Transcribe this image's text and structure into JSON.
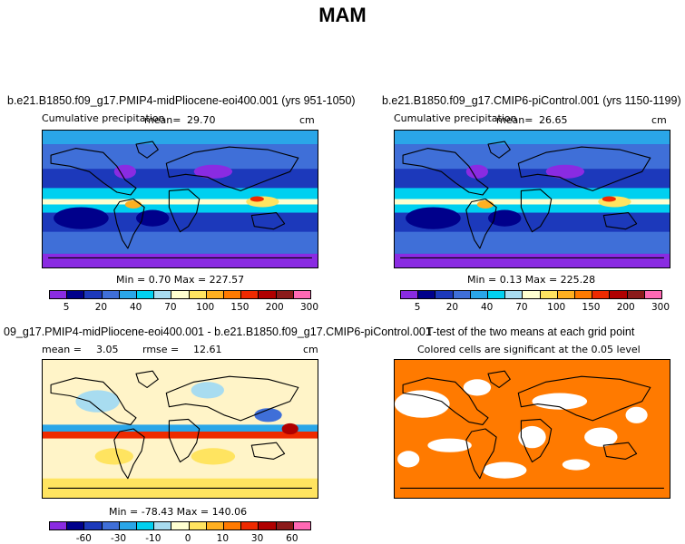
{
  "title": "MAM",
  "panels": [
    {
      "id": "pliocene",
      "title": "b.e21.B1850.f09_g17.PMIP4-midPliocene-eoi400.001 (yrs 951-1050)",
      "subtitle": "Cumulative precipitation",
      "mean_label": "mean=",
      "mean_value": "29.70",
      "units": "cm",
      "min_max": "Min =    0.70 Max = 227.57"
    },
    {
      "id": "picontrol",
      "title": "b.e21.B1850.f09_g17.CMIP6-piControl.001 (yrs 1150-1199)",
      "subtitle": "Cumulative precipitation",
      "mean_label": "mean=",
      "mean_value": "26.65",
      "units": "cm",
      "min_max": "Min =    0.13 Max = 225.28"
    },
    {
      "id": "difference",
      "title": "09_g17.PMIP4-midPliocene-eoi400.001 - b.e21.B1850.f09_g17.CMIP6-piControl.001",
      "mean_label": "mean =",
      "mean_value": "3.05",
      "rmse_label": "rmse =",
      "rmse_value": "12.61",
      "units": "cm",
      "min_max": "Min = -78.43 Max = 140.06"
    },
    {
      "id": "ttest",
      "title": "T-test of the two means at each grid point",
      "subtitle": "Colored cells are significant at the 0.05 level"
    }
  ],
  "colorbars": {
    "precip": {
      "colors": [
        "#8a2be2",
        "#00008b",
        "#1c39bb",
        "#3f6fd8",
        "#2aa6e8",
        "#00d0f0",
        "#a8dcf0",
        "#ffffd0",
        "#ffe460",
        "#ffb020",
        "#ff7a00",
        "#ee2a00",
        "#b00000",
        "#8b1a1a",
        "#ff69b4"
      ],
      "tick_labels": [
        "5",
        "20",
        "40",
        "70",
        "100",
        "150",
        "200",
        "300"
      ]
    },
    "diff": {
      "colors": [
        "#8a2be2",
        "#00008b",
        "#1c39bb",
        "#3f6fd8",
        "#2aa6e8",
        "#00d0f0",
        "#a8dcf0",
        "#ffffd0",
        "#ffe460",
        "#ffb020",
        "#ff7a00",
        "#ee2a00",
        "#b00000",
        "#8b1a1a",
        "#ff69b4"
      ],
      "tick_labels": [
        "-60",
        "-30",
        "-10",
        "0",
        "10",
        "30",
        "60"
      ]
    }
  },
  "chart_data": [
    {
      "type": "heatmap",
      "title": "b.e21.B1850.f09_g17.PMIP4-midPliocene-eoi400.001 (yrs 951-1050)",
      "subtitle": "Cumulative precipitation",
      "units": "cm",
      "mean": 29.7,
      "min": 0.7,
      "max": 227.57,
      "contour_levels": [
        5,
        10,
        20,
        30,
        40,
        50,
        70,
        85,
        100,
        125,
        150,
        175,
        200,
        250,
        300
      ]
    },
    {
      "type": "heatmap",
      "title": "b.e21.B1850.f09_g17.CMIP6-piControl.001 (yrs 1150-1199)",
      "subtitle": "Cumulative precipitation",
      "units": "cm",
      "mean": 26.65,
      "min": 0.13,
      "max": 225.28,
      "contour_levels": [
        5,
        10,
        20,
        30,
        40,
        50,
        70,
        85,
        100,
        125,
        150,
        175,
        200,
        250,
        300
      ]
    },
    {
      "type": "heatmap",
      "title": "09_g17.PMIP4-midPliocene-eoi400.001 - b.e21.B1850.f09_g17.CMIP6-piControl.001",
      "units": "cm",
      "mean": 3.05,
      "rmse": 12.61,
      "min": -78.43,
      "max": 140.06,
      "contour_levels": [
        -80,
        -60,
        -45,
        -30,
        -20,
        -10,
        -5,
        0,
        5,
        10,
        20,
        30,
        45,
        60,
        80
      ]
    },
    {
      "type": "heatmap",
      "title": "T-test of the two means at each grid point",
      "subtitle": "Colored cells are significant at the 0.05 level",
      "significance_level": 0.05,
      "significant_color": "#ff7a00"
    }
  ]
}
